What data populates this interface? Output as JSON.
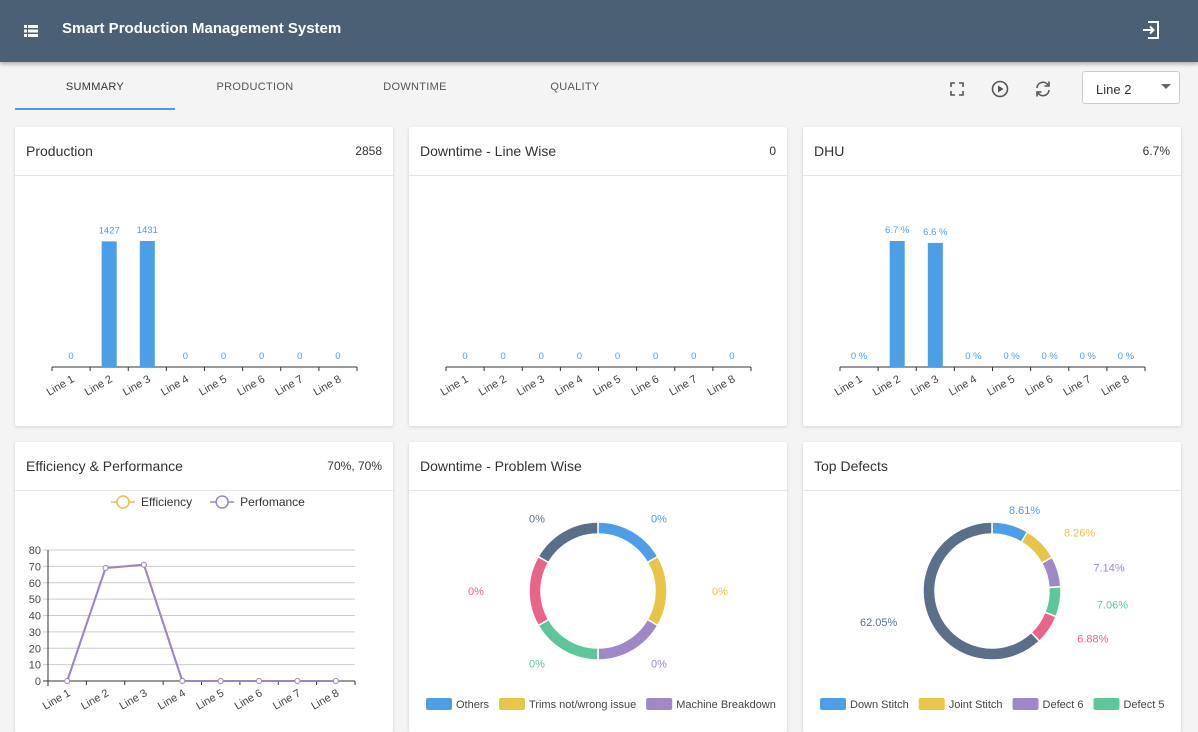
{
  "header": {
    "title": "Smart Production Management System"
  },
  "tabs": [
    "SUMMARY",
    "PRODUCTION",
    "DOWNTIME",
    "QUALITY"
  ],
  "line_select": "Line 2",
  "cards": [
    {
      "title": "Production",
      "value": "2858",
      "chart_data": {
        "type": "bar",
        "categories": [
          "Line 1",
          "Line 2",
          "Line 3",
          "Line 4",
          "Line 5",
          "Line 6",
          "Line 7",
          "Line 8"
        ],
        "values": [
          0,
          1427,
          1431,
          0,
          0,
          0,
          0,
          0
        ],
        "color": "#4c9fe6"
      }
    },
    {
      "title": "Downtime - Line Wise",
      "value": "0",
      "chart_data": {
        "type": "bar",
        "categories": [
          "Line 1",
          "Line 2",
          "Line 3",
          "Line 4",
          "Line 5",
          "Line 6",
          "Line 7",
          "Line 8"
        ],
        "values": [
          0,
          0,
          0,
          0,
          0,
          0,
          0,
          0
        ],
        "color": "#4c9fe6"
      }
    },
    {
      "title": "DHU",
      "value": "6.7%",
      "chart_data": {
        "type": "bar",
        "categories": [
          "Line 1",
          "Line 2",
          "Line 3",
          "Line 4",
          "Line 5",
          "Line 6",
          "Line 7",
          "Line 8"
        ],
        "values": [
          0,
          6.7,
          6.6,
          0,
          0,
          0,
          0,
          0
        ],
        "value_labels": [
          "0 %",
          "6.7 %",
          "6.6 %",
          "0 %",
          "0 %",
          "0 %",
          "0 %",
          "0 %"
        ],
        "color": "#4c9fe6"
      }
    },
    {
      "title": "Efficiency & Performance",
      "value": "70%, 70%",
      "chart_data": {
        "type": "line",
        "categories": [
          "Line 1",
          "Line 2",
          "Line 3",
          "Line 4",
          "Line 5",
          "Line 6",
          "Line 7",
          "Line 8"
        ],
        "series": [
          {
            "name": "Efficiency",
            "color": "#e8c04a",
            "values": [
              0,
              69,
              71,
              0,
              0,
              0,
              0,
              0
            ]
          },
          {
            "name": "Perfomance",
            "color": "#9a86c2",
            "values": [
              0,
              69,
              71,
              0,
              0,
              0,
              0,
              0
            ]
          }
        ],
        "ylim": [
          0,
          80
        ],
        "yticks": [
          0,
          10,
          20,
          30,
          40,
          50,
          60,
          70,
          80
        ],
        "grid": true
      }
    },
    {
      "title": "Downtime - Problem Wise",
      "chart_data": {
        "type": "donut",
        "categories": [
          "Others",
          "Trims not/wrong issue",
          "Machine Breakdown",
          null,
          null,
          null
        ],
        "values": [
          0,
          0,
          0,
          0,
          0,
          0
        ],
        "value_labels": [
          "0%",
          "0%",
          "0%",
          "0%",
          "0%",
          "0%"
        ],
        "colors": [
          "#4c9fe6",
          "#e8c547",
          "#9e88c7",
          "#5cc79a",
          "#e8648a",
          "#5a7088"
        ]
      }
    },
    {
      "title": "Top Defects",
      "chart_data": {
        "type": "donut",
        "categories": [
          "Down Stitch",
          "Joint Stitch",
          "Defect 6",
          "Defect 5",
          null,
          null
        ],
        "values": [
          8.61,
          8.26,
          7.14,
          7.06,
          6.88,
          62.05
        ],
        "value_labels": [
          "8.61%",
          "8.26%",
          "7.14%",
          "7.06%",
          "6.88%",
          "62.05%"
        ],
        "colors": [
          "#4c9fe6",
          "#e8c547",
          "#9e88c7",
          "#5cc79a",
          "#e8648a",
          "#5a7088"
        ]
      }
    }
  ]
}
